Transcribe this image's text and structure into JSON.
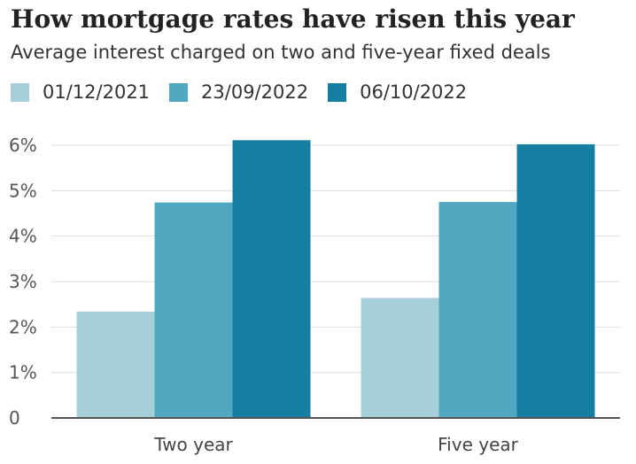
{
  "chart_data": {
    "type": "bar",
    "title": "How mortgage rates have risen this year",
    "subtitle": "Average interest charged on two and five-year fixed deals",
    "categories": [
      "Two year",
      "Five year"
    ],
    "series": [
      {
        "name": "01/12/2021",
        "color": "#a7cfd9",
        "values": [
          2.34,
          2.64
        ]
      },
      {
        "name": "23/09/2022",
        "color": "#4fa8bf",
        "values": [
          4.74,
          4.75
        ]
      },
      {
        "name": "06/10/2022",
        "color": "#167ea0",
        "values": [
          6.11,
          6.02
        ]
      }
    ],
    "ylim": [
      0,
      6
    ],
    "yticks": [
      {
        "value": 0,
        "label": "0"
      },
      {
        "value": 1,
        "label": "1%"
      },
      {
        "value": 2,
        "label": "2%"
      },
      {
        "value": 3,
        "label": "3%"
      },
      {
        "value": 4,
        "label": "4%"
      },
      {
        "value": 5,
        "label": "5%"
      },
      {
        "value": 6,
        "label": "6%"
      }
    ],
    "grid": true,
    "legend_position": "top-left",
    "gridline_color": "#dddddd",
    "axis_color": "#555555"
  }
}
